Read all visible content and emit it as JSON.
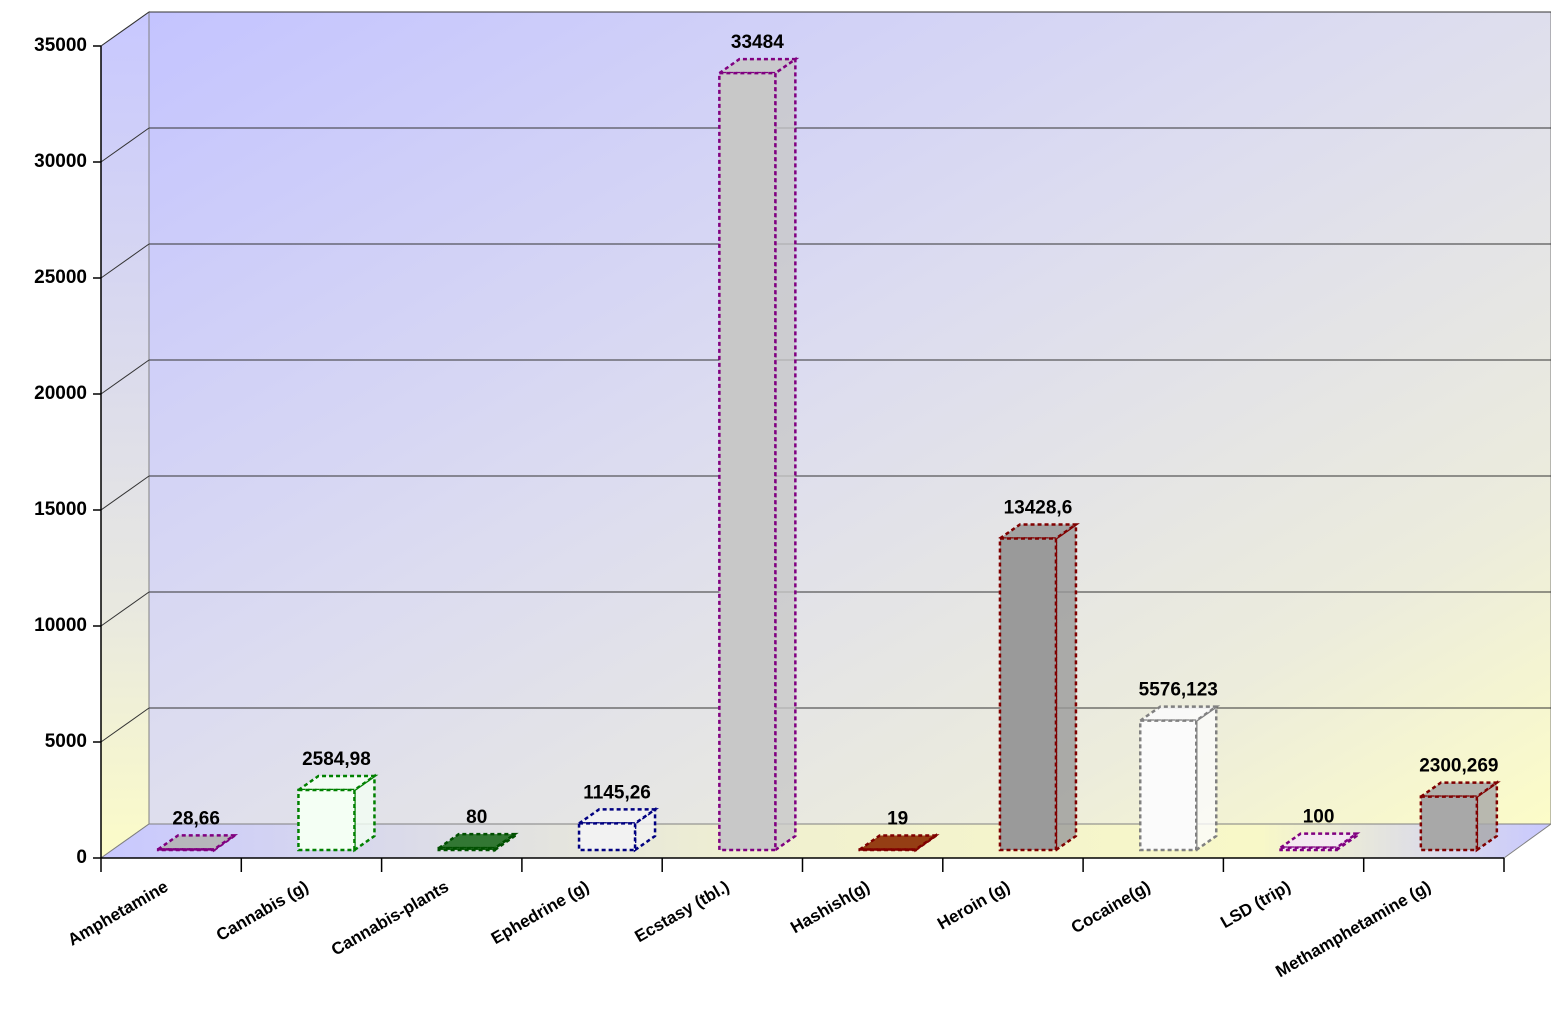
{
  "chart_data": {
    "type": "bar3d",
    "categories": [
      "Amphetamine",
      "Cannabis (g)",
      "Cannabis-plants",
      "Ephedrine (g)",
      "Ecstasy (tbl.)",
      "Hashish(g)",
      "Heroin (g)",
      "Cocaine(g)",
      "LSD (trip)",
      "Methamphetamine (g)"
    ],
    "values": [
      28.66,
      2584.98,
      80,
      1145.26,
      33484,
      19,
      13428.6,
      5576.123,
      100,
      2300.269
    ],
    "value_labels": [
      "28,66",
      "2584,98",
      "80",
      "1145,26",
      "33484",
      "19",
      "13428,6",
      "5576,123",
      "100",
      "2300,269"
    ],
    "colors": [
      "#b4b4b4",
      "#f4fff4",
      "#1f6b1f",
      "#f2f2f2",
      "#c8c8c8",
      "#8b2a00",
      "#9a9a9a",
      "#fbfbfb",
      "#f4e8f4",
      "#a8a8a8"
    ],
    "border_colors": [
      "#800080",
      "#008000",
      "#005000",
      "#000080",
      "#800080",
      "#800000",
      "#800000",
      "#808080",
      "#800080",
      "#800000"
    ],
    "ylim": [
      0,
      35000
    ],
    "yticks": [
      0,
      5000,
      10000,
      15000,
      20000,
      25000,
      30000,
      35000
    ],
    "grid": true
  }
}
